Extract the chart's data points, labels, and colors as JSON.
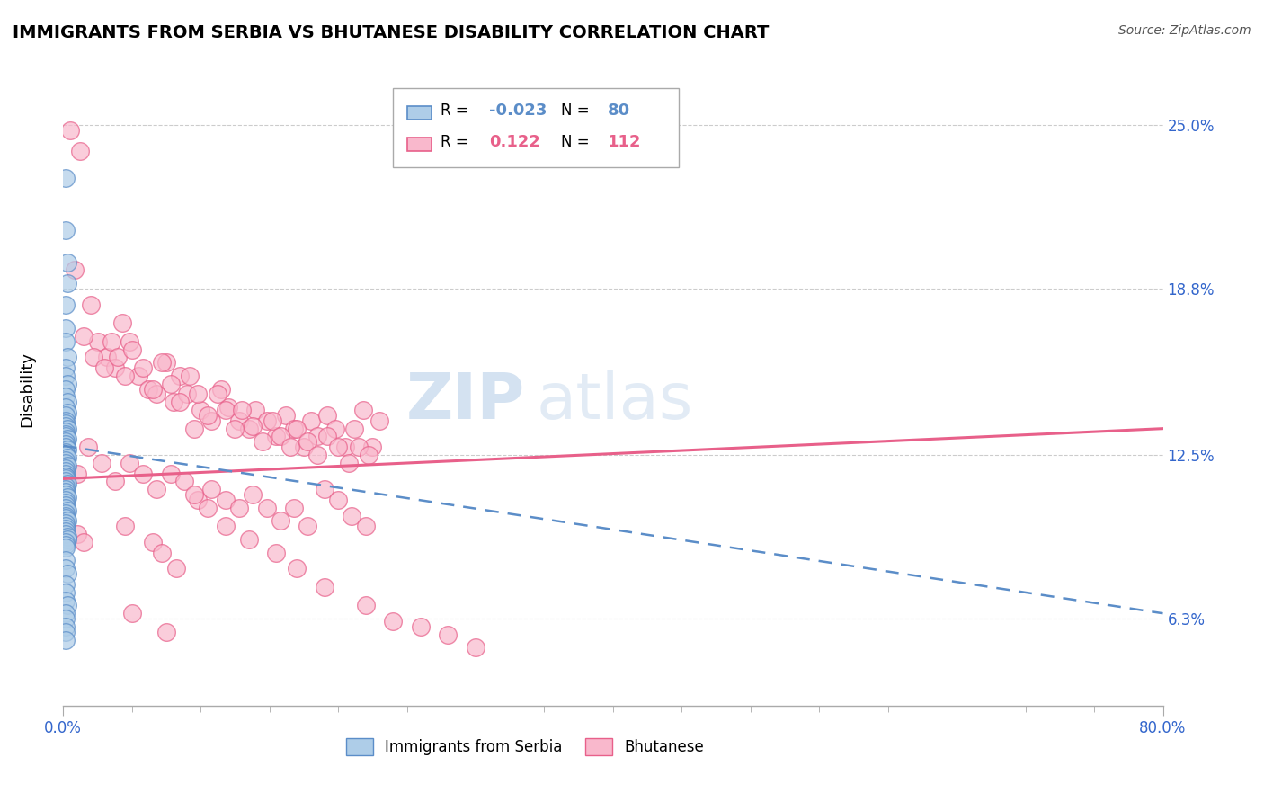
{
  "title": "IMMIGRANTS FROM SERBIA VS BHUTANESE DISABILITY CORRELATION CHART",
  "source": "Source: ZipAtlas.com",
  "ylabel": "Disability",
  "ytick_labels": [
    "6.3%",
    "12.5%",
    "18.8%",
    "25.0%"
  ],
  "ytick_values": [
    0.063,
    0.125,
    0.188,
    0.25
  ],
  "xlim": [
    0.0,
    0.8
  ],
  "ylim": [
    0.03,
    0.27
  ],
  "legend_serbia_R": "-0.023",
  "legend_serbia_N": "80",
  "legend_bhutanese_R": "0.122",
  "legend_bhutanese_N": "112",
  "serbia_color": "#aecde8",
  "bhutanese_color": "#f9b8cc",
  "serbia_line_color": "#5b8dc8",
  "bhutanese_line_color": "#e8608a",
  "serbia_line": {
    "x0": 0.0,
    "y0": 0.1285,
    "x1": 0.8,
    "y1": 0.065
  },
  "bhutanese_line": {
    "x0": 0.0,
    "y0": 0.116,
    "x1": 0.8,
    "y1": 0.135
  },
  "serbia_scatter_x": [
    0.002,
    0.002,
    0.003,
    0.003,
    0.002,
    0.002,
    0.002,
    0.003,
    0.002,
    0.002,
    0.003,
    0.002,
    0.002,
    0.003,
    0.002,
    0.003,
    0.002,
    0.002,
    0.002,
    0.002,
    0.003,
    0.002,
    0.002,
    0.002,
    0.003,
    0.002,
    0.002,
    0.002,
    0.003,
    0.002,
    0.002,
    0.002,
    0.003,
    0.002,
    0.002,
    0.003,
    0.002,
    0.002,
    0.002,
    0.002,
    0.002,
    0.002,
    0.002,
    0.003,
    0.002,
    0.002,
    0.002,
    0.002,
    0.003,
    0.002,
    0.002,
    0.002,
    0.002,
    0.003,
    0.002,
    0.002,
    0.002,
    0.003,
    0.002,
    0.002,
    0.002,
    0.002,
    0.002,
    0.003,
    0.003,
    0.002,
    0.002,
    0.002,
    0.002,
    0.002,
    0.003,
    0.002,
    0.002,
    0.002,
    0.003,
    0.002,
    0.002,
    0.002,
    0.002,
    0.002
  ],
  "serbia_scatter_y": [
    0.23,
    0.21,
    0.198,
    0.19,
    0.182,
    0.173,
    0.168,
    0.162,
    0.158,
    0.155,
    0.152,
    0.15,
    0.147,
    0.145,
    0.143,
    0.141,
    0.14,
    0.138,
    0.137,
    0.136,
    0.135,
    0.134,
    0.133,
    0.132,
    0.131,
    0.13,
    0.129,
    0.128,
    0.127,
    0.126,
    0.125,
    0.125,
    0.124,
    0.123,
    0.122,
    0.121,
    0.12,
    0.119,
    0.118,
    0.117,
    0.117,
    0.116,
    0.115,
    0.114,
    0.113,
    0.112,
    0.111,
    0.11,
    0.109,
    0.108,
    0.107,
    0.106,
    0.105,
    0.104,
    0.103,
    0.102,
    0.101,
    0.1,
    0.099,
    0.098,
    0.097,
    0.096,
    0.095,
    0.094,
    0.093,
    0.092,
    0.091,
    0.09,
    0.085,
    0.082,
    0.08,
    0.076,
    0.073,
    0.07,
    0.068,
    0.065,
    0.063,
    0.06,
    0.058,
    0.055
  ],
  "bhutanese_scatter_x": [
    0.005,
    0.012,
    0.008,
    0.02,
    0.025,
    0.032,
    0.038,
    0.043,
    0.048,
    0.055,
    0.062,
    0.068,
    0.075,
    0.08,
    0.085,
    0.09,
    0.095,
    0.1,
    0.108,
    0.115,
    0.12,
    0.128,
    0.135,
    0.14,
    0.148,
    0.155,
    0.162,
    0.168,
    0.175,
    0.18,
    0.185,
    0.192,
    0.198,
    0.205,
    0.212,
    0.218,
    0.225,
    0.23,
    0.015,
    0.022,
    0.03,
    0.035,
    0.04,
    0.045,
    0.05,
    0.058,
    0.065,
    0.072,
    0.078,
    0.085,
    0.092,
    0.098,
    0.105,
    0.112,
    0.118,
    0.125,
    0.13,
    0.138,
    0.145,
    0.152,
    0.158,
    0.165,
    0.17,
    0.178,
    0.185,
    0.192,
    0.2,
    0.208,
    0.215,
    0.222,
    0.01,
    0.018,
    0.028,
    0.038,
    0.048,
    0.058,
    0.068,
    0.078,
    0.088,
    0.098,
    0.108,
    0.118,
    0.128,
    0.138,
    0.148,
    0.158,
    0.168,
    0.178,
    0.19,
    0.2,
    0.21,
    0.22,
    0.01,
    0.015,
    0.045,
    0.065,
    0.072,
    0.082,
    0.095,
    0.105,
    0.118,
    0.135,
    0.155,
    0.17,
    0.19,
    0.22,
    0.24,
    0.26,
    0.28,
    0.3,
    0.05,
    0.075
  ],
  "bhutanese_scatter_y": [
    0.248,
    0.24,
    0.195,
    0.182,
    0.168,
    0.162,
    0.158,
    0.175,
    0.168,
    0.155,
    0.15,
    0.148,
    0.16,
    0.145,
    0.155,
    0.148,
    0.135,
    0.142,
    0.138,
    0.15,
    0.143,
    0.138,
    0.135,
    0.142,
    0.138,
    0.132,
    0.14,
    0.135,
    0.128,
    0.138,
    0.132,
    0.14,
    0.135,
    0.128,
    0.135,
    0.142,
    0.128,
    0.138,
    0.17,
    0.162,
    0.158,
    0.168,
    0.162,
    0.155,
    0.165,
    0.158,
    0.15,
    0.16,
    0.152,
    0.145,
    0.155,
    0.148,
    0.14,
    0.148,
    0.142,
    0.135,
    0.142,
    0.136,
    0.13,
    0.138,
    0.132,
    0.128,
    0.135,
    0.13,
    0.125,
    0.132,
    0.128,
    0.122,
    0.128,
    0.125,
    0.118,
    0.128,
    0.122,
    0.115,
    0.122,
    0.118,
    0.112,
    0.118,
    0.115,
    0.108,
    0.112,
    0.108,
    0.105,
    0.11,
    0.105,
    0.1,
    0.105,
    0.098,
    0.112,
    0.108,
    0.102,
    0.098,
    0.095,
    0.092,
    0.098,
    0.092,
    0.088,
    0.082,
    0.11,
    0.105,
    0.098,
    0.093,
    0.088,
    0.082,
    0.075,
    0.068,
    0.062,
    0.06,
    0.057,
    0.052,
    0.065,
    0.058
  ]
}
